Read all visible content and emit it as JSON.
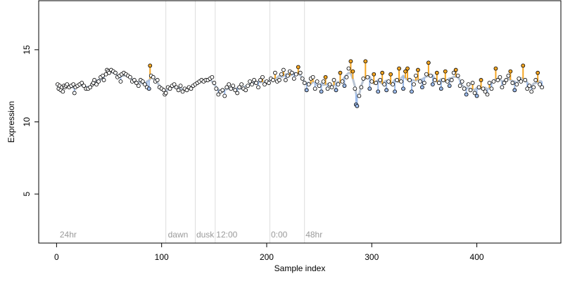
{
  "chart_data": {
    "type": "scatter",
    "xlabel": "Sample index",
    "ylabel": "Expression",
    "xlim": [
      -17,
      480
    ],
    "ylim": [
      1.6,
      18.4
    ],
    "x_ticks": [
      0,
      100,
      200,
      300,
      400
    ],
    "y_ticks": [
      5,
      10,
      15
    ],
    "grid": false,
    "colors": {
      "point_fill": "#ffffff",
      "point_stroke": "#000000",
      "high_fill": "#f5a623",
      "low_fill": "#9dbcec",
      "smooth_line": "#b9c4d3",
      "divider": "#dddddd",
      "annotation": "#9a9a9a"
    },
    "annotations": [
      {
        "label": "24hr",
        "x": 3
      },
      {
        "label": "dawn",
        "x": 106
      },
      {
        "label": "dusk",
        "x": 133
      },
      {
        "label": "12:00",
        "x": 152
      },
      {
        "label": "0:00",
        "x": 204
      },
      {
        "label": "48hr",
        "x": 237
      }
    ],
    "dividers": [
      104,
      132,
      151,
      203,
      236
    ],
    "series": [
      {
        "values": [
          [
            1,
            12.6
          ],
          [
            2,
            12.3
          ],
          [
            3,
            12.5
          ],
          [
            4,
            12.2
          ],
          [
            5,
            12.4
          ],
          [
            6,
            12.1
          ],
          [
            7,
            12.5
          ],
          [
            8,
            12.4
          ],
          [
            9,
            12.5
          ],
          [
            10,
            12.6
          ],
          [
            12,
            12.4
          ],
          [
            14,
            12.5
          ],
          [
            16,
            12.6
          ],
          [
            17,
            12.0
          ],
          [
            18,
            12.4
          ],
          [
            20,
            12.5
          ],
          [
            22,
            12.6
          ],
          [
            24,
            12.7
          ],
          [
            26,
            12.5
          ],
          [
            28,
            12.3
          ],
          [
            30,
            12.3
          ],
          [
            32,
            12.4
          ],
          [
            34,
            12.6
          ],
          [
            35,
            12.7
          ],
          [
            36,
            12.9
          ],
          [
            38,
            12.6
          ],
          [
            40,
            12.8
          ],
          [
            42,
            13.1
          ],
          [
            44,
            13.2
          ],
          [
            45,
            12.9
          ],
          [
            47,
            13.3
          ],
          [
            48,
            13.6
          ],
          [
            49,
            13.5
          ],
          [
            50,
            13.4
          ],
          [
            52,
            13.6
          ],
          [
            54,
            13.5
          ],
          [
            56,
            13.4
          ],
          [
            58,
            13.1
          ],
          [
            60,
            13.2
          ],
          [
            61,
            12.8
          ],
          [
            62,
            13.3
          ],
          [
            64,
            13.4
          ],
          [
            66,
            13.3
          ],
          [
            68,
            13.2
          ],
          [
            70,
            13.1
          ],
          [
            72,
            12.8
          ],
          [
            74,
            12.9
          ],
          [
            76,
            12.7
          ],
          [
            78,
            12.5
          ],
          [
            80,
            12.9
          ],
          [
            82,
            12.8
          ],
          [
            84,
            12.6
          ],
          [
            86,
            12.4
          ],
          [
            88,
            12.3
          ],
          [
            89,
            13.9
          ],
          [
            90,
            13.2
          ],
          [
            92,
            13.1
          ],
          [
            94,
            12.8
          ],
          [
            96,
            12.9
          ],
          [
            98,
            12.4
          ],
          [
            100,
            12.3
          ],
          [
            102,
            12.2
          ],
          [
            103,
            11.9
          ],
          [
            104,
            12.0
          ],
          [
            106,
            12.4
          ],
          [
            108,
            12.3
          ],
          [
            110,
            12.5
          ],
          [
            112,
            12.6
          ],
          [
            114,
            12.4
          ],
          [
            116,
            12.2
          ],
          [
            118,
            12.5
          ],
          [
            120,
            12.1
          ],
          [
            122,
            12.3
          ],
          [
            124,
            12.2
          ],
          [
            126,
            12.4
          ],
          [
            128,
            12.3
          ],
          [
            130,
            12.5
          ],
          [
            132,
            12.6
          ],
          [
            134,
            12.7
          ],
          [
            136,
            12.8
          ],
          [
            138,
            12.9
          ],
          [
            140,
            12.8
          ],
          [
            142,
            12.9
          ],
          [
            144,
            12.9
          ],
          [
            146,
            13.0
          ],
          [
            148,
            13.1
          ],
          [
            150,
            12.7
          ],
          [
            152,
            12.3
          ],
          [
            154,
            11.9
          ],
          [
            156,
            12.1
          ],
          [
            158,
            12.2
          ],
          [
            160,
            11.8
          ],
          [
            162,
            12.4
          ],
          [
            164,
            12.6
          ],
          [
            166,
            12.3
          ],
          [
            168,
            12.5
          ],
          [
            170,
            12.2
          ],
          [
            172,
            12.0
          ],
          [
            174,
            12.4
          ],
          [
            176,
            12.6
          ],
          [
            178,
            12.3
          ],
          [
            180,
            12.2
          ],
          [
            182,
            12.5
          ],
          [
            184,
            12.8
          ],
          [
            186,
            12.6
          ],
          [
            188,
            12.9
          ],
          [
            190,
            12.7
          ],
          [
            192,
            12.4
          ],
          [
            194,
            12.9
          ],
          [
            196,
            13.1
          ],
          [
            198,
            12.6
          ],
          [
            200,
            12.8
          ],
          [
            202,
            12.7
          ],
          [
            204,
            13.0
          ],
          [
            206,
            12.9
          ],
          [
            208,
            13.4
          ],
          [
            210,
            12.8
          ],
          [
            212,
            12.9
          ],
          [
            214,
            13.3
          ],
          [
            216,
            13.6
          ],
          [
            218,
            12.9
          ],
          [
            220,
            13.2
          ],
          [
            222,
            13.5
          ],
          [
            224,
            13.4
          ],
          [
            226,
            13.0
          ],
          [
            228,
            13.3
          ],
          [
            230,
            13.8
          ],
          [
            232,
            13.4
          ],
          [
            234,
            13.0
          ],
          [
            236,
            12.7
          ],
          [
            238,
            12.2
          ],
          [
            240,
            12.6
          ],
          [
            242,
            13.0
          ],
          [
            244,
            13.1
          ],
          [
            246,
            12.3
          ],
          [
            248,
            12.8
          ],
          [
            250,
            12.5
          ],
          [
            252,
            12.1
          ],
          [
            254,
            12.8
          ],
          [
            256,
            13.1
          ],
          [
            258,
            12.3
          ],
          [
            260,
            12.6
          ],
          [
            262,
            12.4
          ],
          [
            264,
            12.9
          ],
          [
            266,
            12.2
          ],
          [
            268,
            12.6
          ],
          [
            270,
            13.4
          ],
          [
            272,
            12.8
          ],
          [
            274,
            12.5
          ],
          [
            276,
            13.1
          ],
          [
            278,
            13.7
          ],
          [
            280,
            14.2
          ],
          [
            282,
            13.5
          ],
          [
            284,
            12.3
          ],
          [
            285,
            11.2
          ],
          [
            286,
            11.1
          ],
          [
            288,
            11.8
          ],
          [
            290,
            12.4
          ],
          [
            292,
            13.0
          ],
          [
            294,
            14.2
          ],
          [
            296,
            13.1
          ],
          [
            298,
            12.3
          ],
          [
            300,
            12.8
          ],
          [
            302,
            13.3
          ],
          [
            304,
            12.7
          ],
          [
            306,
            12.1
          ],
          [
            308,
            12.9
          ],
          [
            310,
            13.4
          ],
          [
            312,
            12.6
          ],
          [
            314,
            12.2
          ],
          [
            316,
            12.8
          ],
          [
            318,
            13.3
          ],
          [
            320,
            12.6
          ],
          [
            322,
            12.1
          ],
          [
            324,
            12.9
          ],
          [
            326,
            13.7
          ],
          [
            328,
            12.8
          ],
          [
            330,
            12.3
          ],
          [
            332,
            13.5
          ],
          [
            334,
            13.7
          ],
          [
            336,
            12.9
          ],
          [
            338,
            12.1
          ],
          [
            340,
            12.6
          ],
          [
            342,
            13.2
          ],
          [
            344,
            13.6
          ],
          [
            346,
            12.8
          ],
          [
            348,
            12.4
          ],
          [
            350,
            12.7
          ],
          [
            352,
            13.3
          ],
          [
            354,
            14.1
          ],
          [
            356,
            13.2
          ],
          [
            358,
            12.6
          ],
          [
            360,
            12.9
          ],
          [
            362,
            13.4
          ],
          [
            364,
            12.7
          ],
          [
            366,
            12.3
          ],
          [
            368,
            12.9
          ],
          [
            370,
            13.5
          ],
          [
            372,
            12.8
          ],
          [
            374,
            12.5
          ],
          [
            376,
            12.9
          ],
          [
            378,
            13.4
          ],
          [
            380,
            13.6
          ],
          [
            382,
            13.2
          ],
          [
            384,
            12.5
          ],
          [
            386,
            12.8
          ],
          [
            388,
            12.3
          ],
          [
            390,
            11.9
          ],
          [
            392,
            12.6
          ],
          [
            394,
            12.2
          ],
          [
            396,
            12.7
          ],
          [
            398,
            12.0
          ],
          [
            400,
            11.8
          ],
          [
            402,
            12.4
          ],
          [
            404,
            12.9
          ],
          [
            406,
            12.3
          ],
          [
            408,
            12.1
          ],
          [
            410,
            11.9
          ],
          [
            412,
            12.7
          ],
          [
            414,
            12.3
          ],
          [
            416,
            12.8
          ],
          [
            418,
            13.7
          ],
          [
            420,
            12.9
          ],
          [
            422,
            13.1
          ],
          [
            424,
            12.4
          ],
          [
            426,
            12.7
          ],
          [
            428,
            12.9
          ],
          [
            430,
            13.2
          ],
          [
            432,
            13.5
          ],
          [
            434,
            12.7
          ],
          [
            436,
            12.2
          ],
          [
            438,
            12.6
          ],
          [
            440,
            13.0
          ],
          [
            442,
            12.8
          ],
          [
            444,
            13.9
          ],
          [
            446,
            12.9
          ],
          [
            448,
            12.3
          ],
          [
            450,
            12.5
          ],
          [
            452,
            12.1
          ],
          [
            454,
            12.4
          ],
          [
            456,
            12.9
          ],
          [
            458,
            13.4
          ],
          [
            460,
            12.6
          ],
          [
            462,
            12.4
          ]
        ]
      }
    ]
  }
}
